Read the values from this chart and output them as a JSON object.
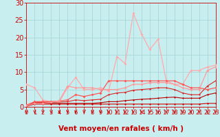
{
  "xlabel": "Vent moyen/en rafales ( km/h )",
  "xlim": [
    0,
    23
  ],
  "ylim": [
    0,
    30
  ],
  "yticks": [
    0,
    5,
    10,
    15,
    20,
    25,
    30
  ],
  "xticks": [
    0,
    1,
    2,
    3,
    4,
    5,
    6,
    7,
    8,
    9,
    10,
    11,
    12,
    13,
    14,
    15,
    16,
    17,
    18,
    19,
    20,
    21,
    22,
    23
  ],
  "background_color": "#c8eef0",
  "grid_color": "#a8d8da",
  "series": [
    {
      "x": [
        0,
        1,
        2,
        3,
        4,
        5,
        6,
        7,
        8,
        9,
        10,
        11,
        12,
        13,
        14,
        15,
        16,
        17,
        18,
        19,
        20,
        21,
        22,
        23
      ],
      "y": [
        0.2,
        0.8,
        0.8,
        0.8,
        0.8,
        0.8,
        0.8,
        0.8,
        0.8,
        0.8,
        0.8,
        0.8,
        0.8,
        0.8,
        0.8,
        0.8,
        0.8,
        0.8,
        0.8,
        0.8,
        0.8,
        0.8,
        1.0,
        1.0
      ],
      "color": "#cc0000",
      "lw": 0.8,
      "marker": "D",
      "ms": 1.5
    },
    {
      "x": [
        0,
        1,
        2,
        3,
        4,
        5,
        6,
        7,
        8,
        9,
        10,
        11,
        12,
        13,
        14,
        15,
        16,
        17,
        18,
        19,
        20,
        21,
        22,
        23
      ],
      "y": [
        0.2,
        1.0,
        1.0,
        1.0,
        1.0,
        1.0,
        1.0,
        1.0,
        1.0,
        1.2,
        1.5,
        1.5,
        1.8,
        2.0,
        2.2,
        2.3,
        2.5,
        2.7,
        2.8,
        2.5,
        2.5,
        2.5,
        3.5,
        4.0
      ],
      "color": "#bb0000",
      "lw": 0.8,
      "marker": "D",
      "ms": 1.5
    },
    {
      "x": [
        0,
        1,
        2,
        3,
        4,
        5,
        6,
        7,
        8,
        9,
        10,
        11,
        12,
        13,
        14,
        15,
        16,
        17,
        18,
        19,
        20,
        21,
        22,
        23
      ],
      "y": [
        0.3,
        1.3,
        1.3,
        1.3,
        1.4,
        1.5,
        2.0,
        1.8,
        2.0,
        2.2,
        3.5,
        4.0,
        4.2,
        4.8,
        5.0,
        5.2,
        5.5,
        5.5,
        5.0,
        4.0,
        3.5,
        3.5,
        6.0,
        7.5
      ],
      "color": "#dd2222",
      "lw": 0.8,
      "marker": "D",
      "ms": 1.5
    },
    {
      "x": [
        0,
        1,
        2,
        3,
        4,
        5,
        6,
        7,
        8,
        9,
        10,
        11,
        12,
        13,
        14,
        15,
        16,
        17,
        18,
        19,
        20,
        21,
        22,
        23
      ],
      "y": [
        6.5,
        5.5,
        2.0,
        1.5,
        1.5,
        5.5,
        8.5,
        5.0,
        5.0,
        5.5,
        4.5,
        14.5,
        12.5,
        27.0,
        21.0,
        16.5,
        19.5,
        7.5,
        6.5,
        6.5,
        10.5,
        10.5,
        11.5,
        12.0
      ],
      "color": "#ffaaaa",
      "lw": 0.9,
      "marker": "D",
      "ms": 2.0
    },
    {
      "x": [
        0,
        1,
        2,
        3,
        4,
        5,
        6,
        7,
        8,
        9,
        10,
        11,
        12,
        13,
        14,
        15,
        16,
        17,
        18,
        19,
        20,
        21,
        22,
        23
      ],
      "y": [
        0.5,
        1.5,
        1.5,
        1.5,
        1.7,
        2.0,
        3.5,
        3.0,
        3.5,
        4.0,
        7.5,
        7.5,
        7.5,
        7.5,
        7.5,
        7.5,
        7.5,
        7.5,
        7.5,
        6.5,
        5.5,
        5.5,
        5.0,
        5.5
      ],
      "color": "#ff5555",
      "lw": 0.9,
      "marker": "D",
      "ms": 2.0
    },
    {
      "x": [
        0,
        1,
        2,
        3,
        4,
        5,
        6,
        7,
        8,
        9,
        10,
        11,
        12,
        13,
        14,
        15,
        16,
        17,
        18,
        19,
        20,
        21,
        22,
        23
      ],
      "y": [
        0.3,
        1.0,
        1.0,
        1.3,
        1.8,
        6.0,
        5.5,
        5.5,
        5.5,
        5.0,
        5.0,
        5.0,
        5.5,
        6.5,
        6.5,
        7.0,
        7.0,
        7.0,
        6.5,
        5.5,
        5.0,
        5.0,
        10.5,
        11.5
      ],
      "color": "#ff9999",
      "lw": 0.9,
      "marker": "D",
      "ms": 2.0
    }
  ],
  "arrow_color": "#cc0000",
  "xlabel_color": "#cc0000",
  "xlabel_fontsize": 7.5,
  "tick_color": "#cc0000",
  "ytick_fontsize": 7,
  "xtick_fontsize": 6
}
